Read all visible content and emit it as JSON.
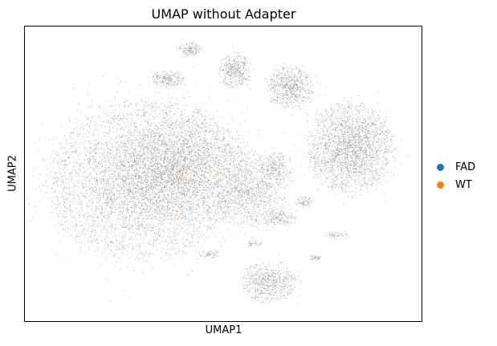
{
  "chart_data": {
    "type": "scatter",
    "title": "UMAP without Adapter",
    "xlabel": "UMAP1",
    "ylabel": "UMAP2",
    "grid": false,
    "ticks": false,
    "legend_placement": "right",
    "series": [
      {
        "name": "FAD",
        "color": "#1f77b4"
      },
      {
        "name": "WT",
        "color": "#ff7f0e"
      }
    ],
    "background_point_color": "#8a8a8a"
  }
}
